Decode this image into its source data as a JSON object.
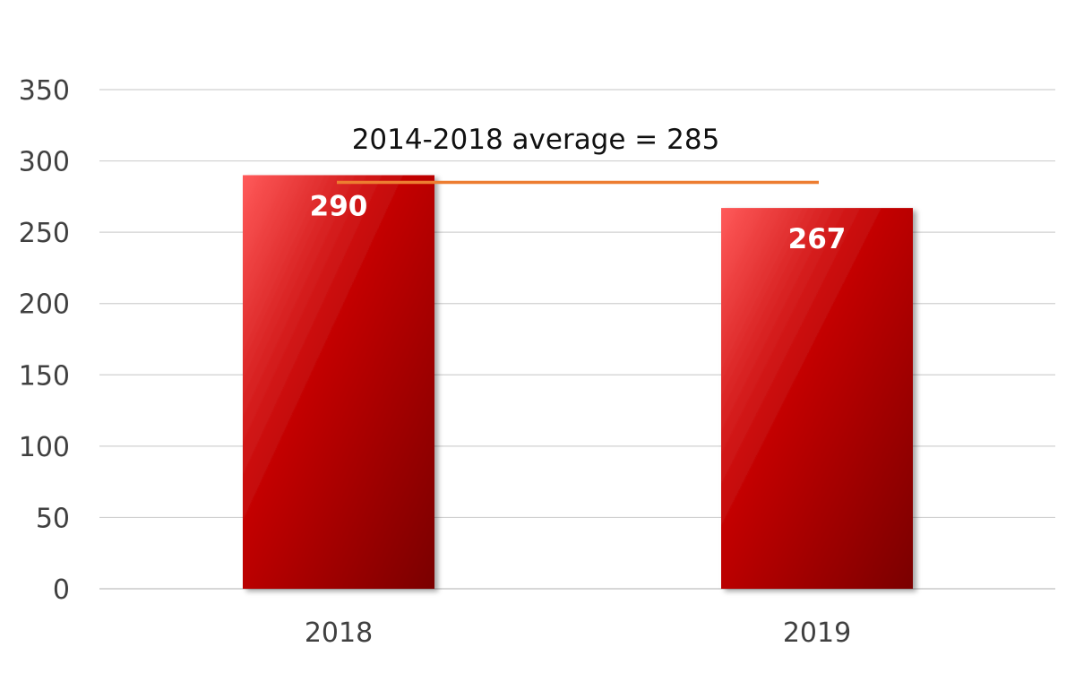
{
  "chart_data": {
    "type": "bar",
    "categories": [
      "2018",
      "2019"
    ],
    "series": [
      {
        "values": [
          290,
          267
        ]
      }
    ],
    "data_labels": [
      "290",
      "267"
    ],
    "ylim": [
      0,
      350
    ],
    "yticks": [
      0,
      50,
      100,
      150,
      200,
      250,
      300,
      350
    ],
    "ytick_labels": [
      "0",
      "50",
      "100",
      "150",
      "200",
      "250",
      "300",
      "350"
    ],
    "grid": true,
    "bar_color": "#c00000",
    "bar_color_light": "#ff5a5a",
    "bar_color_dark": "#7a0000",
    "reference_line": {
      "value": 285,
      "label": "2014-2018 average = 285",
      "color": "#ed7d31"
    },
    "gridline_color": "#d0d0d0"
  }
}
